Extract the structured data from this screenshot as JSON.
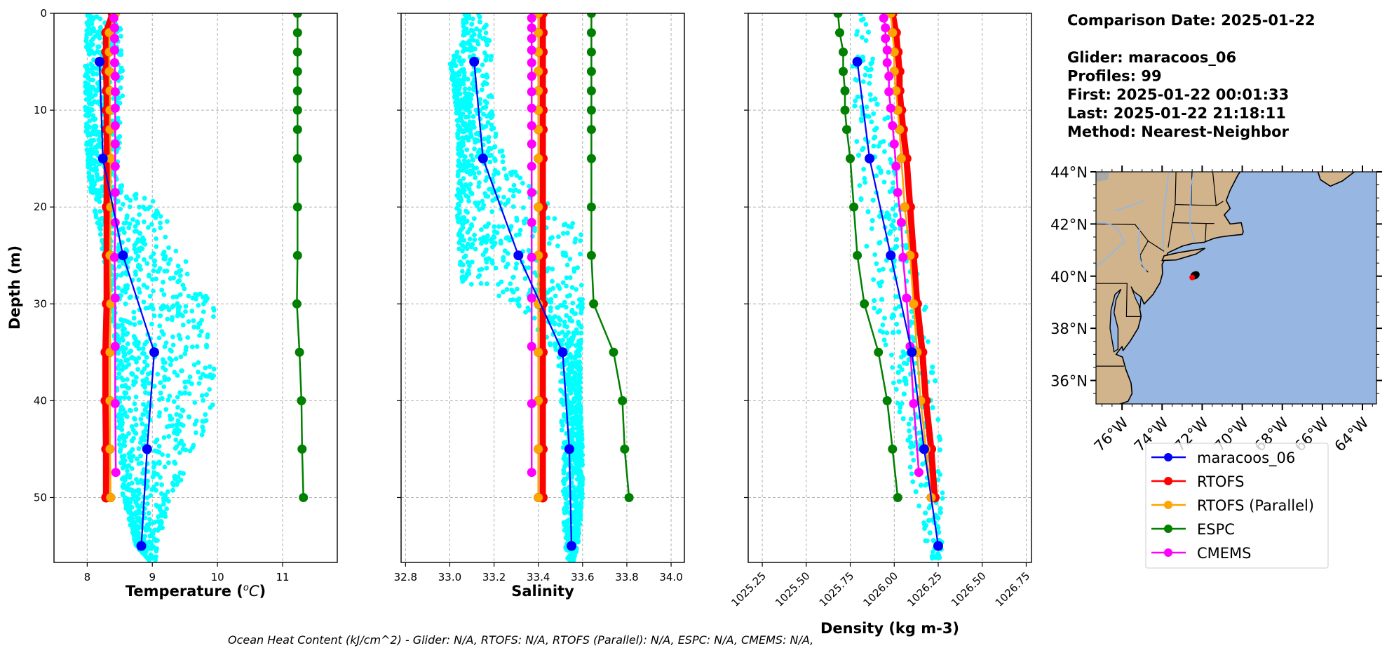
{
  "info": {
    "lines": [
      "Comparison Date: 2025-01-22",
      "",
      "Glider: maracoos_06",
      "Profiles: 99",
      "First: 2025-01-22 00:01:33",
      "Last: 2025-01-22 21:18:11",
      "Method: Nearest-Neighbor"
    ]
  },
  "footer": "Ocean Heat Content (kJ/cm^2) - Glider: N/A,  RTOFS: N/A,  RTOFS (Parallel): N/A,  ESPC: N/A,  CMEMS: N/A,",
  "colors": {
    "glider_raw": "#00ffff",
    "maracoos_06": "#0000ff",
    "RTOFS": "#ff0000",
    "RTOFS (Parallel)": "#ffa500",
    "ESPC": "#008000",
    "CMEMS": "#ff00ff",
    "land": "#d2b48c",
    "ocean": "#97b6e1",
    "river": "#97b6e1",
    "lake": "#a9a9a9",
    "glider_position": "#ff0000"
  },
  "legend": {
    "entries": [
      "maracoos_06",
      "RTOFS",
      "RTOFS (Parallel)",
      "ESPC",
      "CMEMS"
    ],
    "placement": "below map"
  },
  "chart_data": [
    {
      "type": "line",
      "id": "temperature",
      "title": "",
      "xlabel": "Temperature (°C)",
      "ylabel": "Depth (m)",
      "xlim": [
        7.49,
        11.84
      ],
      "ylim": [
        56.7,
        0
      ],
      "xticks": [
        8,
        9,
        10,
        11
      ],
      "yticks": [
        0,
        10,
        20,
        30,
        40,
        50
      ],
      "grid": true,
      "glider_raw_envelope": {
        "note": "cyan scatter of raw glider observations",
        "depth": [
          0,
          5,
          10,
          15,
          18,
          20,
          25,
          30,
          35,
          40,
          45,
          50,
          55,
          56.5
        ],
        "min": [
          8.0,
          7.97,
          7.97,
          8.0,
          8.05,
          8.1,
          8.25,
          8.35,
          8.45,
          8.45,
          8.5,
          8.55,
          8.75,
          8.95
        ],
        "max": [
          8.5,
          8.55,
          8.55,
          8.5,
          8.55,
          9.2,
          9.5,
          9.95,
          9.95,
          9.95,
          9.7,
          9.3,
          9.1,
          9.05
        ]
      },
      "series": [
        {
          "name": "maracoos_06",
          "depth": [
            5,
            15,
            25,
            35,
            45,
            55
          ],
          "values": [
            8.19,
            8.24,
            8.55,
            9.03,
            8.92,
            8.83
          ]
        },
        {
          "name": "RTOFS",
          "depth": [
            0,
            2,
            4,
            6,
            8,
            10,
            12,
            15,
            20,
            25,
            30,
            35,
            40,
            45,
            50
          ],
          "values": [
            8.39,
            8.29,
            8.29,
            8.29,
            8.3,
            8.3,
            8.3,
            8.3,
            8.3,
            8.3,
            8.3,
            8.28,
            8.28,
            8.29,
            8.29
          ]
        },
        {
          "name": "RTOFS (Parallel)",
          "depth": [
            0,
            2,
            4,
            6,
            8,
            10,
            12,
            15,
            20,
            25,
            30,
            35,
            40,
            45,
            50
          ],
          "values": [
            8.43,
            8.34,
            8.34,
            8.34,
            8.35,
            8.35,
            8.35,
            8.36,
            8.36,
            8.35,
            8.36,
            8.35,
            8.35,
            8.35,
            8.36
          ]
        },
        {
          "name": "ESPC",
          "depth": [
            0,
            2,
            4,
            6,
            8,
            10,
            12,
            15,
            20,
            25,
            30,
            35,
            40,
            45,
            50
          ],
          "values": [
            11.23,
            11.23,
            11.23,
            11.23,
            11.23,
            11.23,
            11.23,
            11.23,
            11.23,
            11.23,
            11.22,
            11.26,
            11.29,
            11.3,
            11.32
          ]
        },
        {
          "name": "CMEMS",
          "depth": [
            0.5,
            1.5,
            2.6,
            3.8,
            5.1,
            6.5,
            8.1,
            9.8,
            11.6,
            13.5,
            15.8,
            18.5,
            21.6,
            25.2,
            29.4,
            34.4,
            40.3,
            47.4
          ],
          "values": [
            8.41,
            8.42,
            8.42,
            8.42,
            8.42,
            8.43,
            8.43,
            8.43,
            8.43,
            8.43,
            8.43,
            8.43,
            8.43,
            8.42,
            8.43,
            8.43,
            8.43,
            8.44
          ]
        }
      ]
    },
    {
      "type": "line",
      "id": "salinity",
      "title": "",
      "xlabel": "Salinity",
      "ylabel": "",
      "xlim": [
        32.78,
        34.06
      ],
      "ylim": [
        56.7,
        0
      ],
      "xticks": [
        "32.8",
        "33.0",
        "33.2",
        "33.4",
        "33.6",
        "33.8",
        "34.0"
      ],
      "yticks": [
        0,
        10,
        20,
        30,
        40,
        50
      ],
      "grid": true,
      "glider_raw_envelope": {
        "note": "cyan scatter of raw glider observations",
        "depth": [
          0,
          3,
          5,
          10,
          15,
          20,
          22,
          25,
          28,
          30,
          35,
          40,
          45,
          50,
          55,
          56.5
        ],
        "min": [
          33.06,
          33.06,
          33.0,
          33.03,
          33.04,
          33.03,
          33.04,
          33.04,
          33.06,
          33.3,
          33.48,
          33.5,
          33.51,
          33.51,
          33.52,
          33.53
        ],
        "max": [
          33.15,
          33.19,
          33.19,
          33.19,
          33.25,
          33.46,
          33.6,
          33.59,
          33.6,
          33.6,
          33.59,
          33.59,
          33.6,
          33.6,
          33.58,
          33.56
        ]
      },
      "series": [
        {
          "name": "maracoos_06",
          "depth": [
            5,
            15,
            25,
            35,
            45,
            55
          ],
          "values": [
            33.11,
            33.15,
            33.31,
            33.51,
            33.54,
            33.55
          ]
        },
        {
          "name": "RTOFS",
          "depth": [
            0,
            2,
            4,
            6,
            8,
            10,
            12,
            15,
            20,
            25,
            30,
            35,
            40,
            45,
            50
          ],
          "values": [
            33.42,
            33.42,
            33.42,
            33.42,
            33.42,
            33.42,
            33.42,
            33.42,
            33.42,
            33.42,
            33.42,
            33.42,
            33.42,
            33.42,
            33.42
          ]
        },
        {
          "name": "RTOFS (Parallel)",
          "depth": [
            0,
            2,
            4,
            6,
            8,
            10,
            12,
            15,
            20,
            25,
            30,
            35,
            40,
            45,
            50
          ],
          "values": [
            33.4,
            33.4,
            33.4,
            33.4,
            33.4,
            33.4,
            33.4,
            33.4,
            33.4,
            33.4,
            33.4,
            33.4,
            33.4,
            33.4,
            33.4
          ]
        },
        {
          "name": "ESPC",
          "depth": [
            0,
            2,
            4,
            6,
            8,
            10,
            12,
            15,
            20,
            25,
            30,
            35,
            40,
            45,
            50
          ],
          "values": [
            33.64,
            33.64,
            33.64,
            33.64,
            33.64,
            33.64,
            33.64,
            33.64,
            33.64,
            33.64,
            33.65,
            33.74,
            33.78,
            33.79,
            33.81
          ]
        },
        {
          "name": "CMEMS",
          "depth": [
            0.5,
            1.5,
            2.6,
            3.8,
            5.1,
            6.5,
            8.1,
            9.8,
            11.6,
            13.5,
            15.8,
            18.5,
            21.6,
            25.2,
            29.4,
            34.4,
            40.3,
            47.4
          ],
          "values": [
            33.37,
            33.37,
            33.37,
            33.37,
            33.37,
            33.37,
            33.37,
            33.37,
            33.37,
            33.37,
            33.37,
            33.37,
            33.37,
            33.37,
            33.37,
            33.37,
            33.37,
            33.37
          ]
        }
      ]
    },
    {
      "type": "line",
      "id": "density",
      "title": "",
      "xlabel": "Density (kg m-3)",
      "ylabel": "",
      "xlim": [
        1025.17,
        1026.78
      ],
      "ylim": [
        56.7,
        0
      ],
      "xticks": [
        "1025.25",
        "1025.50",
        "1025.75",
        "1026.00",
        "1026.25",
        "1026.50",
        "1026.75"
      ],
      "yticks": [
        0,
        10,
        20,
        30,
        40,
        50
      ],
      "grid": true,
      "glider_raw_envelope": {
        "note": "cyan scatter of raw glider observations",
        "depth": [
          0,
          3,
          5,
          10,
          15,
          20,
          25,
          30,
          35,
          40,
          45,
          50,
          55,
          56.5
        ],
        "min": [
          1025.77,
          1025.75,
          1025.76,
          1025.77,
          1025.79,
          1025.81,
          1025.84,
          1025.88,
          1025.95,
          1026.01,
          1026.07,
          1026.12,
          1026.17,
          1026.2
        ],
        "max": [
          1025.85,
          1025.86,
          1025.9,
          1025.96,
          1026.0,
          1026.05,
          1026.12,
          1026.18,
          1026.21,
          1026.25,
          1026.27,
          1026.28,
          1026.27,
          1026.26
        ]
      },
      "series": [
        {
          "name": "maracoos_06",
          "depth": [
            5,
            15,
            25,
            35,
            45,
            55
          ],
          "values": [
            1025.79,
            1025.86,
            1025.98,
            1026.1,
            1026.17,
            1026.25
          ]
        },
        {
          "name": "RTOFS",
          "depth": [
            0,
            2,
            4,
            6,
            8,
            10,
            12,
            15,
            20,
            25,
            30,
            35,
            40,
            45,
            50
          ],
          "values": [
            1025.99,
            1026.01,
            1026.02,
            1026.03,
            1026.03,
            1026.04,
            1026.05,
            1026.07,
            1026.09,
            1026.11,
            1026.13,
            1026.16,
            1026.18,
            1026.21,
            1026.23
          ]
        },
        {
          "name": "RTOFS (Parallel)",
          "depth": [
            0,
            2,
            4,
            6,
            8,
            10,
            12,
            15,
            20,
            25,
            30,
            35,
            40,
            45,
            50
          ],
          "values": [
            1025.98,
            1025.99,
            1026.0,
            1026.0,
            1026.01,
            1026.02,
            1026.03,
            1026.04,
            1026.06,
            1026.09,
            1026.11,
            1026.13,
            1026.15,
            1026.18,
            1026.21
          ]
        },
        {
          "name": "ESPC",
          "depth": [
            0,
            2,
            4,
            6,
            8,
            10,
            12,
            15,
            20,
            25,
            30,
            35,
            40,
            45,
            50
          ],
          "values": [
            1025.68,
            1025.69,
            1025.71,
            1025.71,
            1025.72,
            1025.72,
            1025.73,
            1025.75,
            1025.77,
            1025.79,
            1025.83,
            1025.91,
            1025.96,
            1025.99,
            1026.02
          ]
        },
        {
          "name": "CMEMS",
          "depth": [
            0.5,
            1.5,
            2.6,
            3.8,
            5.1,
            6.5,
            8.1,
            9.8,
            11.6,
            13.5,
            15.8,
            18.5,
            21.6,
            25.2,
            29.4,
            34.4,
            40.3,
            47.4
          ],
          "values": [
            1025.94,
            1025.95,
            1025.95,
            1025.96,
            1025.96,
            1025.97,
            1025.97,
            1025.98,
            1025.99,
            1026.0,
            1026.01,
            1026.02,
            1026.04,
            1026.05,
            1026.07,
            1026.09,
            1026.11,
            1026.14
          ]
        }
      ]
    },
    {
      "type": "map",
      "id": "location_map",
      "lon_range": [
        -77.3,
        -63.3
      ],
      "lat_range": [
        35.1,
        44.0
      ],
      "lat_ticks": [
        "44°N",
        "42°N",
        "40°N",
        "38°N",
        "36°N"
      ],
      "lat_tick_values": [
        44,
        42,
        40,
        38,
        36
      ],
      "lon_ticks": [
        "76°W",
        "74°W",
        "72°W",
        "70°W",
        "68°W",
        "66°W",
        "64°W"
      ],
      "lon_tick_values": [
        -76,
        -74,
        -72,
        -70,
        -68,
        -66,
        -64
      ],
      "glider_position": {
        "lon": -72.5,
        "lat": 39.95
      }
    }
  ]
}
